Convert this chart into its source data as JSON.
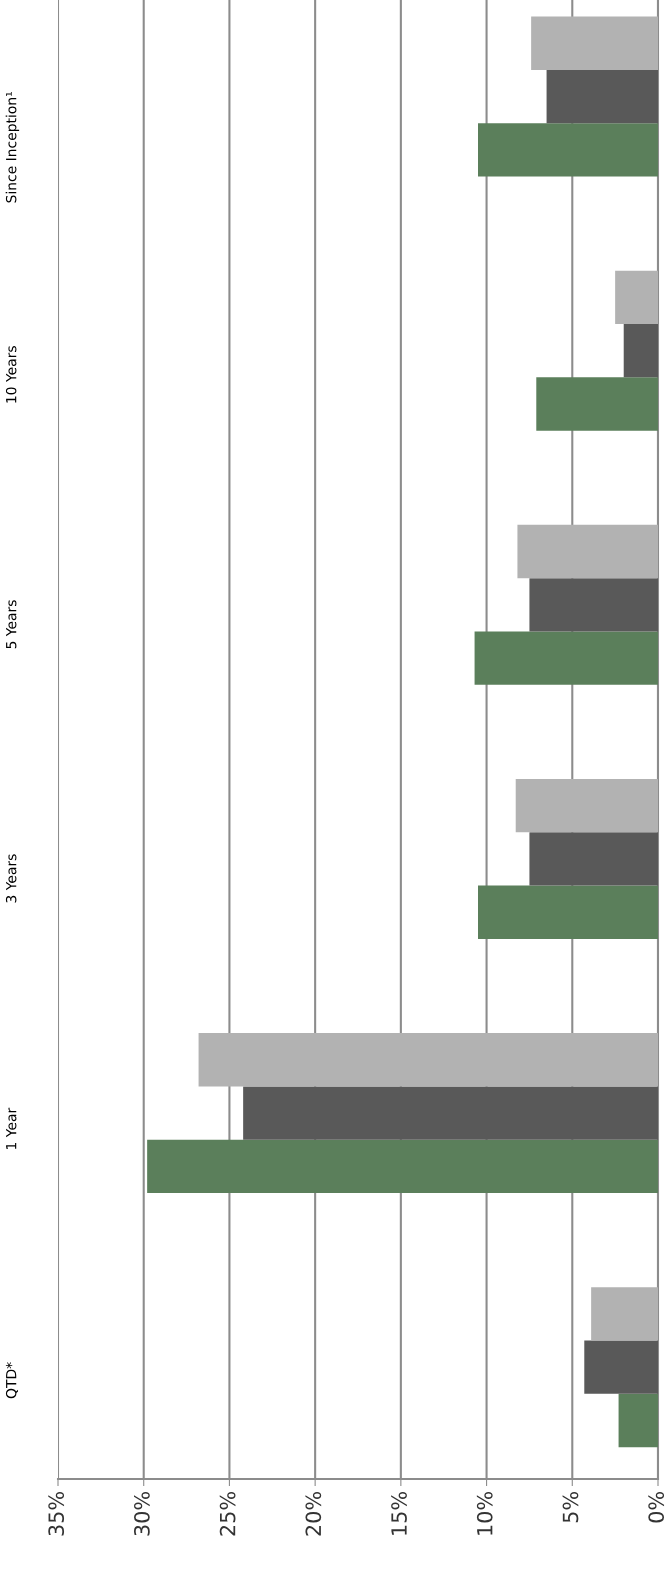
{
  "chart_data": {
    "type": "bar",
    "orientation": "horizontal",
    "categories": [
      "Since Inception¹",
      "10 Years",
      "5 Years",
      "3 Years",
      "1 Year",
      "QTD*"
    ],
    "series": [
      {
        "color": "#5b7f5b",
        "values": [
          10.5,
          7.1,
          10.7,
          10.5,
          29.8,
          2.3
        ]
      },
      {
        "color": "#595959",
        "values": [
          6.5,
          2.0,
          7.5,
          7.5,
          24.2,
          4.3
        ]
      },
      {
        "color": "#b2b2b2",
        "values": [
          7.4,
          2.5,
          8.2,
          8.3,
          26.8,
          3.9
        ]
      }
    ],
    "xlim": [
      35,
      0
    ],
    "xticks": [
      {
        "value": 35,
        "label": "35%"
      },
      {
        "value": 30,
        "label": "30%"
      },
      {
        "value": 25,
        "label": "25%"
      },
      {
        "value": 20,
        "label": "20%"
      },
      {
        "value": 15,
        "label": "15%"
      },
      {
        "value": 10,
        "label": "10%"
      },
      {
        "value": 5,
        "label": "5%"
      },
      {
        "value": 0,
        "label": "0%"
      }
    ],
    "grid": "x",
    "legend": false
  }
}
